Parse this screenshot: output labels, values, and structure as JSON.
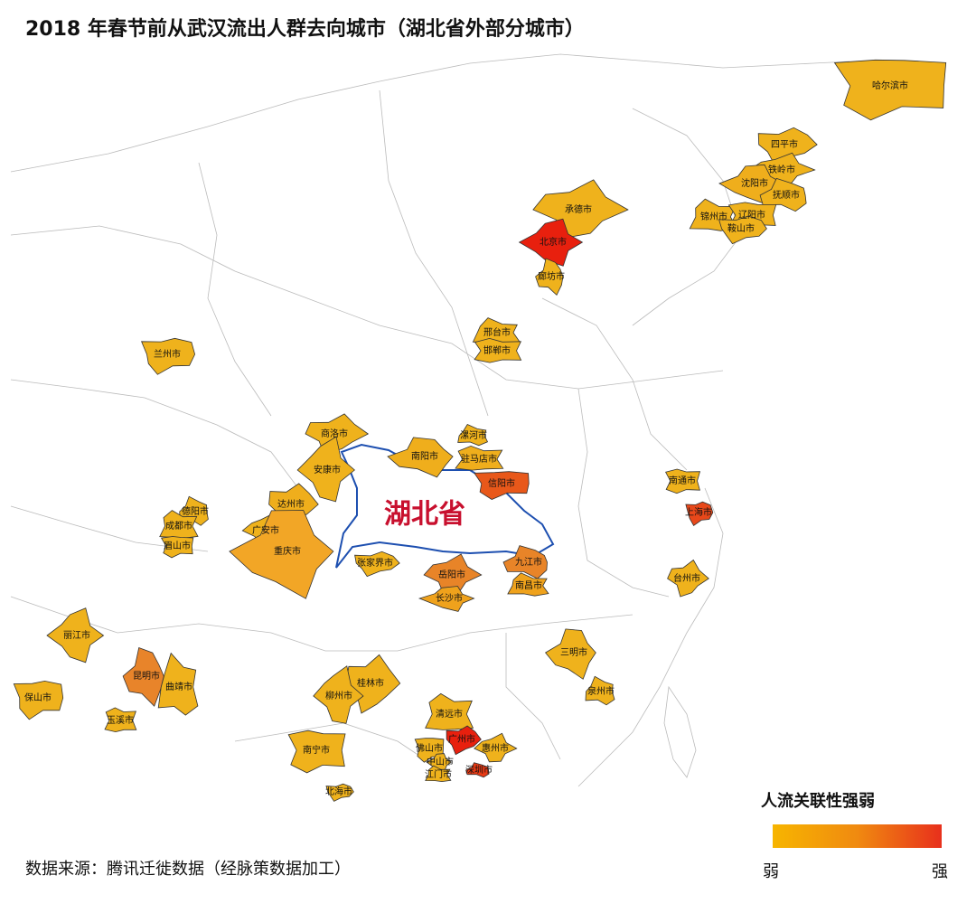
{
  "title": "2018 年春节前从武汉流出人群去向城市（湖北省外部分城市）",
  "province_label": "湖北省",
  "source": "数据来源：腾讯迁徙数据（经脉策数据加工）",
  "legend": {
    "title": "人流关联性强弱",
    "low": "弱",
    "high": "强"
  },
  "cities": [
    {
      "name": "哈尔滨市",
      "color": "#efb21c"
    },
    {
      "name": "四平市",
      "color": "#efb21c"
    },
    {
      "name": "铁岭市",
      "color": "#efb21c"
    },
    {
      "name": "沈阳市",
      "color": "#efae1c"
    },
    {
      "name": "抚顺市",
      "color": "#efb21c"
    },
    {
      "name": "锦州市",
      "color": "#efb21c"
    },
    {
      "name": "辽阳市",
      "color": "#efb21c"
    },
    {
      "name": "鞍山市",
      "color": "#efb21c"
    },
    {
      "name": "承德市",
      "color": "#efb21c"
    },
    {
      "name": "北京市",
      "color": "#e8200e"
    },
    {
      "name": "廊坊市",
      "color": "#efb21c"
    },
    {
      "name": "邢台市",
      "color": "#efb21c"
    },
    {
      "name": "邯郸市",
      "color": "#efb21c"
    },
    {
      "name": "兰州市",
      "color": "#efb21c"
    },
    {
      "name": "商洛市",
      "color": "#efb21c"
    },
    {
      "name": "安康市",
      "color": "#efb21c"
    },
    {
      "name": "南阳市",
      "color": "#efae1c"
    },
    {
      "name": "漯河市",
      "color": "#efb21c"
    },
    {
      "name": "驻马店市",
      "color": "#efae1c"
    },
    {
      "name": "信阳市",
      "color": "#e8581a"
    },
    {
      "name": "达州市",
      "color": "#efae1c"
    },
    {
      "name": "广安市",
      "color": "#efb21c"
    },
    {
      "name": "重庆市",
      "color": "#f2a626"
    },
    {
      "name": "德阳市",
      "color": "#efb21c"
    },
    {
      "name": "成都市",
      "color": "#efb21c"
    },
    {
      "name": "眉山市",
      "color": "#efb21c"
    },
    {
      "name": "张家界市",
      "color": "#efb21c"
    },
    {
      "name": "岳阳市",
      "color": "#e88428"
    },
    {
      "name": "长沙市",
      "color": "#efa21c"
    },
    {
      "name": "九江市",
      "color": "#e88428"
    },
    {
      "name": "南昌市",
      "color": "#efa21c"
    },
    {
      "name": "南通市",
      "color": "#efb21c"
    },
    {
      "name": "上海市",
      "color": "#e8481a"
    },
    {
      "name": "台州市",
      "color": "#efb21c"
    },
    {
      "name": "丽江市",
      "color": "#efb21c"
    },
    {
      "name": "昆明市",
      "color": "#e8842a"
    },
    {
      "name": "曲靖市",
      "color": "#efb21c"
    },
    {
      "name": "玉溪市",
      "color": "#efb21c"
    },
    {
      "name": "保山市",
      "color": "#efb21c"
    },
    {
      "name": "桂林市",
      "color": "#efb21c"
    },
    {
      "name": "柳州市",
      "color": "#efb21c"
    },
    {
      "name": "三明市",
      "color": "#efb21c"
    },
    {
      "name": "泉州市",
      "color": "#efb21c"
    },
    {
      "name": "清远市",
      "color": "#efb21c"
    },
    {
      "name": "佛山市",
      "color": "#efb21c"
    },
    {
      "name": "广州市",
      "color": "#e8200e"
    },
    {
      "name": "惠州市",
      "color": "#efb21c"
    },
    {
      "name": "中山市",
      "color": "#efb21c"
    },
    {
      "name": "深圳市",
      "color": "#e83a14"
    },
    {
      "name": "江门市",
      "color": "#efb21c"
    },
    {
      "name": "南宁市",
      "color": "#efb21c"
    },
    {
      "name": "北海市",
      "color": "#efb21c"
    }
  ]
}
